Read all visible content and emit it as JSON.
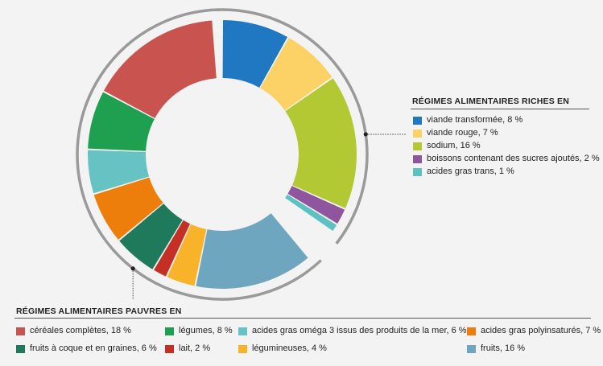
{
  "chart_data": {
    "type": "pie",
    "variant": "donut",
    "rich_group": {
      "title": "RÉGIMES ALIMENTAIRES RICHES EN",
      "slices": [
        {
          "label": "viande transformée, 8 %",
          "value": 8,
          "color": "#1f78c1"
        },
        {
          "label": "viande rouge, 7 %",
          "value": 7,
          "color": "#fcd267"
        },
        {
          "label": "sodium, 16 %",
          "value": 16,
          "color": "#b3c934"
        },
        {
          "label": "boissons contenant des sucres ajoutés, 2 %",
          "value": 2,
          "color": "#8f559f"
        },
        {
          "label": "acides gras trans, 1 %",
          "value": 1,
          "color": "#5bc1c1"
        }
      ]
    },
    "poor_group": {
      "title": "RÉGIMES ALIMENTAIRES PAUVRES EN",
      "slices": [
        {
          "label": "fruits, 16 %",
          "value": 16,
          "color": "#6fa6bf"
        },
        {
          "label": "légumineuses, 4 %",
          "value": 4,
          "color": "#f8b32b"
        },
        {
          "label": "lait, 2 %",
          "value": 2,
          "color": "#c43026"
        },
        {
          "label": "fruits à coque et en graines, 6 %",
          "value": 6,
          "color": "#1f7a5c"
        },
        {
          "label": "acides gras polyinsaturés, 7 %",
          "value": 7,
          "color": "#ee7e0c"
        },
        {
          "label": "acides gras oméga 3 issus des produits de la mer, 6 %",
          "value": 6,
          "color": "#66c2c3"
        },
        {
          "label": "légumes, 8 %",
          "value": 8,
          "color": "#1ea050"
        },
        {
          "label": "céréales complètes, 18 %",
          "value": 18,
          "color": "#c9534f"
        }
      ]
    },
    "legend_order_poor": [
      "céréales complètes, 18 %",
      "légumes, 8 %",
      "acides gras oméga 3 issus des produits de la mer, 6 %",
      "acides gras polyinsaturés, 7 %",
      "fruits à coque et en graines, 6 %",
      "lait, 2 %",
      "légumineuses, 4 %",
      "fruits, 16 %"
    ]
  }
}
